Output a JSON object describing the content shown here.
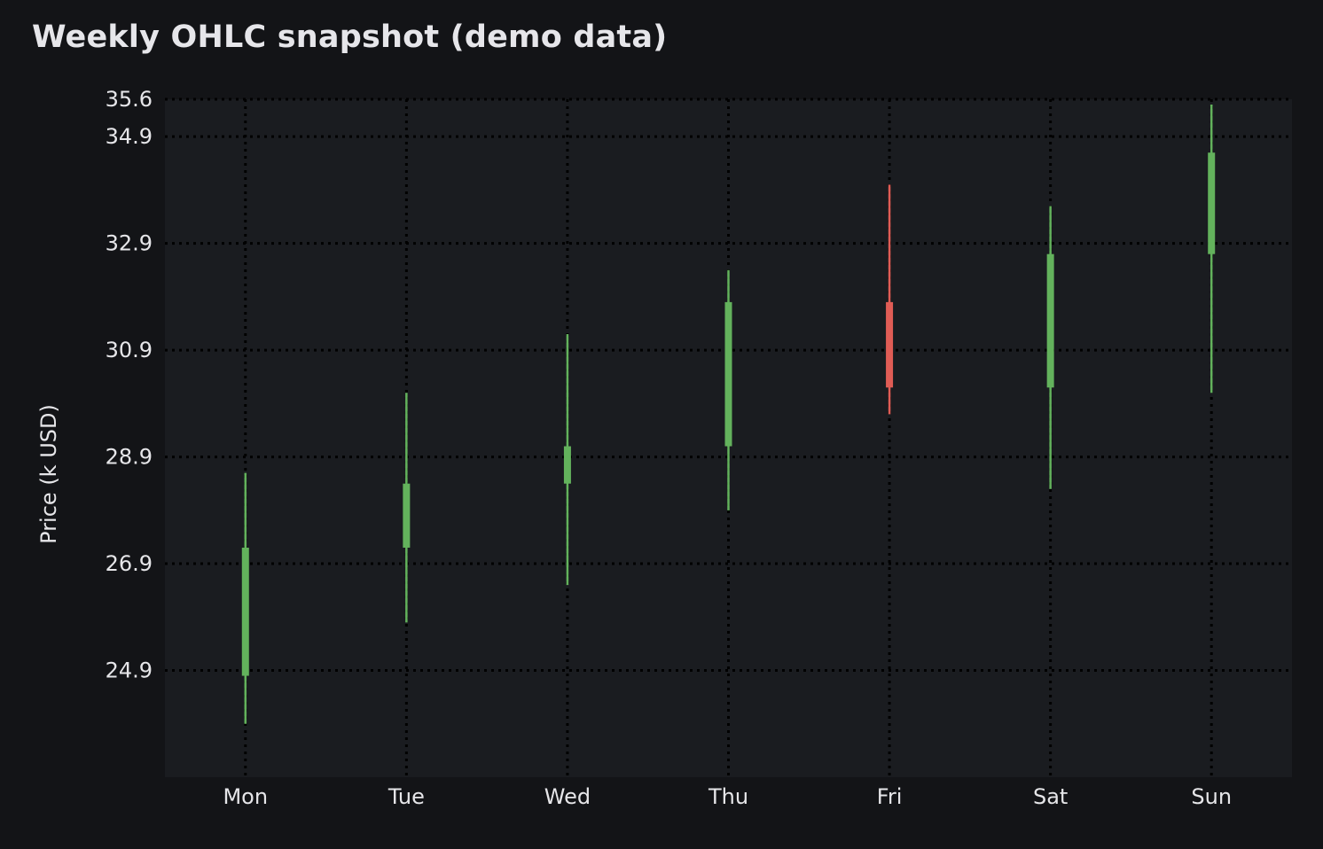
{
  "chart_data": {
    "type": "candlestick",
    "title": "Weekly OHLC snapshot (demo data)",
    "xlabel": "",
    "ylabel": "Price (k USD)",
    "categories": [
      "Mon",
      "Tue",
      "Wed",
      "Thu",
      "Fri",
      "Sat",
      "Sun"
    ],
    "open": [
      24.8,
      27.2,
      28.4,
      29.1,
      31.8,
      30.2,
      32.7
    ],
    "high": [
      28.6,
      30.1,
      31.2,
      32.4,
      34.0,
      33.6,
      35.5
    ],
    "low": [
      23.9,
      25.8,
      26.5,
      27.9,
      29.7,
      28.3,
      30.1
    ],
    "close": [
      27.2,
      28.4,
      29.1,
      31.8,
      30.2,
      32.7,
      34.6
    ],
    "yticks": [
      "24.9",
      "26.9",
      "28.9",
      "30.9",
      "32.9",
      "34.9",
      "35.6"
    ],
    "ylim": [
      22.9,
      35.6
    ],
    "grid": true,
    "colors": {
      "up": "#63b25c",
      "down": "#e05c55",
      "background": "#131417",
      "plot_background": "#1a1c20",
      "grid": "#000000"
    }
  }
}
